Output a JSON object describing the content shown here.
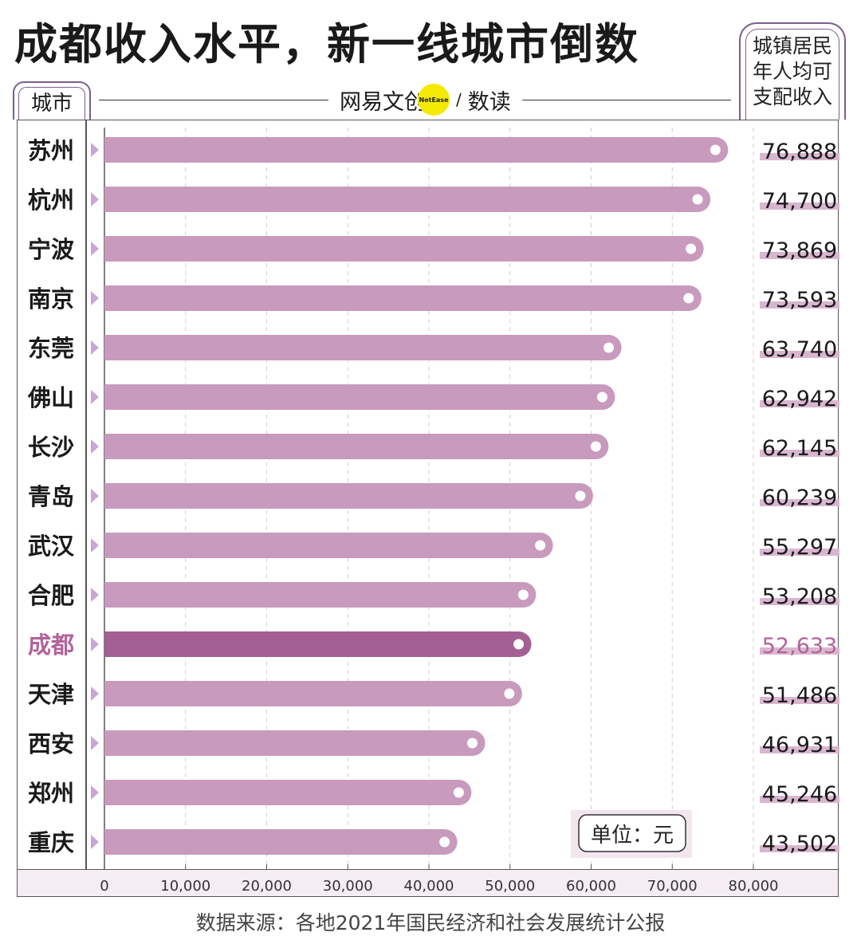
{
  "title": "成都收入水平，新一线城市倒数",
  "brand": {
    "name": "网易文创",
    "logo_text": "NetEase",
    "slash": "/",
    "sub": "数读"
  },
  "column_headers": {
    "city": "城市",
    "value_lines": [
      "城镇居民",
      "年人均可",
      "支配收入"
    ]
  },
  "unit_label": "单位：元",
  "source": "数据来源：各地2021年国民经济和社会发展统计公报",
  "colors": {
    "bar": "#c89abd",
    "highlight_bar": "#a45f93",
    "highlight_text": "#b2629a",
    "value_underline": "#d9b6cf",
    "arrow": "#c9a6d6"
  },
  "chart_data": {
    "type": "bar",
    "orientation": "horizontal",
    "categories": [
      "苏州",
      "杭州",
      "宁波",
      "南京",
      "东莞",
      "佛山",
      "长沙",
      "青岛",
      "武汉",
      "合肥",
      "成都",
      "天津",
      "西安",
      "郑州",
      "重庆"
    ],
    "values": [
      76888,
      74700,
      73869,
      73593,
      63740,
      62942,
      62145,
      60239,
      55297,
      53208,
      52633,
      51486,
      46931,
      45246,
      43502
    ],
    "value_labels": [
      "76,888",
      "74,700",
      "73,869",
      "73,593",
      "63,740",
      "62,942",
      "62,145",
      "60,239",
      "55,297",
      "53,208",
      "52,633",
      "51,486",
      "46,931",
      "45,246",
      "43,502"
    ],
    "highlight": "成都",
    "xlim": [
      0,
      80000
    ],
    "x_ticks": [
      0,
      10000,
      20000,
      30000,
      40000,
      50000,
      60000,
      70000,
      80000
    ],
    "x_tick_labels": [
      "0",
      "10,000",
      "20,000",
      "30,000",
      "40,000",
      "50,000",
      "60,000",
      "70,000",
      "80,000"
    ],
    "grid": true
  }
}
